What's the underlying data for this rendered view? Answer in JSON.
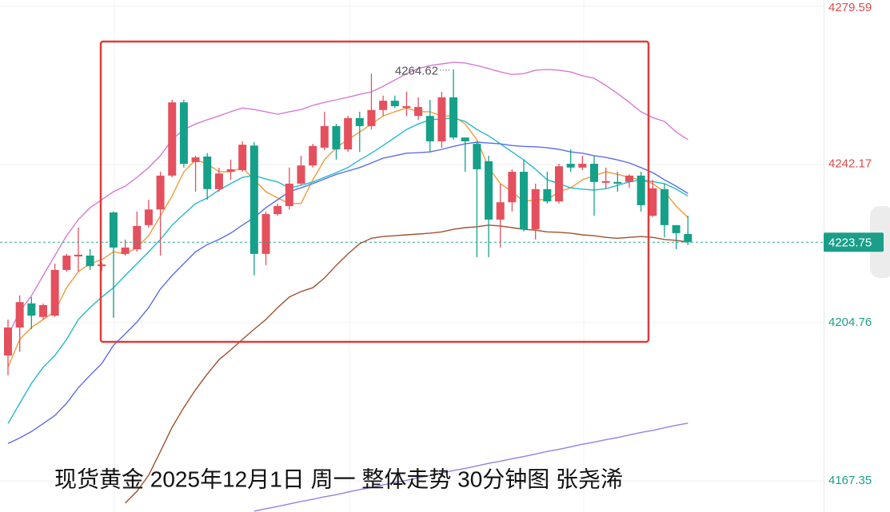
{
  "chart_data": {
    "type": "candlestick",
    "title": "现货黄金 2025年12月1日 周一 整体走势 30分钟图 张尧浠",
    "ylim": [
      4160,
      4281
    ],
    "yticks": [
      4279.59,
      4242.17,
      4204.76,
      4167.35
    ],
    "grid": true,
    "up_color": "#e5505e",
    "down_color": "#15a08a",
    "open": [
      4197.0,
      4203.6,
      4209.3,
      4206.1,
      4206.4,
      4217.2,
      4220.4,
      4220.6,
      4218.1,
      4230.8,
      4221.0,
      4222.1,
      4227.8,
      4231.5,
      4239.5,
      4256.8,
      4242.7,
      4244.0,
      4236.3,
      4240.4,
      4240.8,
      4246.6,
      4221.0,
      4230.4,
      4232.3,
      4237.6,
      4241.9,
      4246.1,
      4251.2,
      4245.7,
      4253.1,
      4251.2,
      4255.0,
      4257.2,
      4255.5,
      4253.6,
      4253.6,
      4247.6,
      4258.0,
      4248.5,
      4247.0,
      4242.9,
      4229.1,
      4233.2,
      4240.4,
      4226.8,
      4236.3,
      4233.4,
      4242.3,
      4241.4,
      4242.3,
      4237.8,
      4238.0,
      4238.0,
      4239.5,
      4230.0,
      4236.3,
      4227.8,
      4225.7
    ],
    "high": [
      4205.5,
      4211.2,
      4210.8,
      4209.3,
      4218.7,
      4221.0,
      4227.2,
      4222.1,
      4219.0,
      4231.0,
      4224.4,
      4231.0,
      4233.8,
      4240.4,
      4257.4,
      4257.4,
      4244.2,
      4244.8,
      4241.4,
      4243.3,
      4247.6,
      4247.4,
      4231.0,
      4232.9,
      4241.4,
      4244.2,
      4247.0,
      4254.6,
      4251.7,
      4253.6,
      4254.6,
      4263.6,
      4258.4,
      4258.4,
      4259.3,
      4258.0,
      4257.4,
      4259.3,
      4264.62,
      4248.5,
      4247.6,
      4244.2,
      4237.6,
      4241.0,
      4243.3,
      4237.6,
      4240.4,
      4242.3,
      4245.7,
      4244.2,
      4244.2,
      4241.4,
      4240.4,
      4239.8,
      4240.4,
      4238.5,
      4237.6,
      4227.8,
      4230.0
    ],
    "low": [
      4192.3,
      4197.9,
      4203.2,
      4205.5,
      4206.1,
      4216.8,
      4216.8,
      4217.2,
      4217.0,
      4205.9,
      4220.6,
      4221.5,
      4227.2,
      4220.6,
      4239.1,
      4241.4,
      4235.7,
      4233.8,
      4235.7,
      4238.5,
      4240.4,
      4215.9,
      4218.3,
      4230.0,
      4231.5,
      4237.2,
      4241.4,
      4245.5,
      4243.3,
      4245.1,
      4245.1,
      4250.4,
      4253.6,
      4255.5,
      4253.6,
      4252.7,
      4245.1,
      4246.1,
      4248.0,
      4240.4,
      4220.2,
      4220.2,
      4222.5,
      4231.0,
      4226.3,
      4224.4,
      4232.9,
      4232.9,
      4240.4,
      4240.8,
      4230.0,
      4236.3,
      4235.7,
      4236.6,
      4231.0,
      4229.7,
      4224.9,
      4222.1,
      4223.1
    ],
    "close": [
      4203.6,
      4209.6,
      4206.4,
      4208.9,
      4217.2,
      4220.6,
      4220.8,
      4218.1,
      4218.5,
      4222.5,
      4222.5,
      4227.6,
      4231.5,
      4239.5,
      4256.8,
      4242.3,
      4243.8,
      4236.3,
      4240.0,
      4241.0,
      4246.8,
      4221.0,
      4230.4,
      4232.3,
      4237.6,
      4241.9,
      4246.5,
      4251.2,
      4245.7,
      4253.1,
      4251.2,
      4255.0,
      4257.2,
      4255.9,
      4255.9,
      4255.7,
      4247.6,
      4258.0,
      4248.5,
      4247.6,
      4241.0,
      4229.1,
      4233.2,
      4240.4,
      4226.8,
      4236.3,
      4233.4,
      4241.7,
      4241.4,
      4242.3,
      4238.0,
      4238.2,
      4237.6,
      4239.5,
      4232.5,
      4236.5,
      4227.8,
      4225.9,
      4223.75
    ],
    "lines": [
      {
        "color": "#f29a38",
        "values": [
          4194.2,
          4200.8,
          4203.6,
          4205.5,
          4207.4,
          4213.0,
          4216.8,
          4218.7,
          4219.6,
          4221.5,
          4221.0,
          4222.5,
          4225.3,
          4230.0,
          4234.7,
          4240.4,
          4243.2,
          4242.3,
          4240.4,
          4240.4,
          4241.4,
          4238.5,
          4235.7,
          4234.2,
          4232.9,
          4232.9,
          4238.5,
          4243.2,
          4246.1,
          4248.0,
          4249.8,
          4251.7,
          4253.6,
          4254.6,
          4255.5,
          4254.6,
          4254.6,
          4253.6,
          4253.6,
          4251.7,
          4248.0,
          4241.4,
          4237.6,
          4235.7,
          4233.4,
          4233.8,
          4233.8,
          4235.7,
          4236.6,
          4238.5,
          4239.5,
          4240.4,
          4239.8,
          4239.1,
          4238.5,
          4237.6,
          4235.7,
          4232.3,
          4229.6
        ]
      },
      {
        "color": "#25b8c8",
        "values": [
          4180.9,
          4185.7,
          4190.4,
          4194.2,
          4197.0,
          4200.8,
          4205.5,
          4208.3,
          4210.8,
          4213.0,
          4215.9,
          4218.7,
          4221.5,
          4224.4,
          4227.8,
          4230.4,
          4232.9,
          4234.2,
          4236.1,
          4237.6,
          4239.1,
          4239.5,
          4238.7,
          4238.0,
          4236.6,
          4237.2,
          4238.0,
          4239.1,
          4240.2,
          4241.4,
          4243.2,
          4244.8,
          4246.6,
          4248.5,
          4250.4,
          4251.7,
          4252.7,
          4252.9,
          4253.1,
          4252.3,
          4250.4,
          4248.9,
          4247.0,
          4245.1,
          4243.2,
          4241.0,
          4238.5,
          4237.6,
          4236.6,
          4236.3,
          4236.1,
          4236.4,
          4237.2,
          4238.0,
          4238.5,
          4238.1,
          4237.6,
          4236.3,
          4234.7
        ]
      },
      {
        "color": "#5b6ee8",
        "values": [
          4176.2,
          4177.5,
          4179.0,
          4180.9,
          4182.8,
          4185.7,
          4189.4,
          4192.3,
          4195.1,
          4199.4,
          4202.1,
          4204.9,
          4208.3,
          4212.7,
          4215.9,
          4218.7,
          4221.5,
          4223.2,
          4224.4,
          4225.9,
          4227.8,
          4229.6,
          4231.9,
          4233.8,
          4235.7,
          4236.6,
          4237.6,
          4238.7,
          4239.8,
          4240.6,
          4241.4,
          4242.5,
          4243.6,
          4244.2,
          4244.8,
          4244.9,
          4245.1,
          4245.7,
          4246.4,
          4247.0,
          4247.4,
          4247.2,
          4247.0,
          4246.6,
          4246.4,
          4246.3,
          4246.1,
          4245.7,
          4245.1,
          4244.8,
          4244.2,
          4243.8,
          4243.2,
          4242.5,
          4241.4,
          4240.2,
          4238.5,
          4237.0,
          4235.3
        ]
      },
      {
        "color": "#a0522d",
        "values": [
          null,
          null,
          null,
          null,
          null,
          null,
          null,
          null,
          null,
          null,
          4162.1,
          4164.9,
          4168.7,
          4174.3,
          4180.0,
          4184.7,
          4188.9,
          4192.6,
          4196.0,
          4198.3,
          4200.8,
          4203.2,
          4205.5,
          4208.3,
          4210.8,
          4212.1,
          4213.0,
          4215.3,
          4218.3,
          4221.0,
          4223.4,
          4224.7,
          4225.1,
          4225.3,
          4225.5,
          4225.7,
          4225.9,
          4226.2,
          4226.8,
          4227.2,
          4227.4,
          4227.8,
          4227.6,
          4227.2,
          4226.8,
          4226.6,
          4226.2,
          4226.1,
          4225.9,
          4225.5,
          4225.3,
          4224.9,
          4224.7,
          4224.9,
          4225.1,
          4224.9,
          4224.4,
          4224.2,
          4223.8
        ]
      },
      {
        "color": "#d57bd5",
        "values": [
          4201.7,
          4207.4,
          4211.1,
          4215.9,
          4220.6,
          4225.3,
          4229.1,
          4231.9,
          4233.8,
          4235.7,
          4237.0,
          4239.1,
          4241.4,
          4244.2,
          4248.0,
          4250.4,
          4251.7,
          4252.7,
          4253.6,
          4254.6,
          4255.5,
          4255.1,
          4254.6,
          4254.0,
          4254.6,
          4255.1,
          4256.1,
          4256.8,
          4257.4,
          4258.0,
          4258.7,
          4259.3,
          4260.6,
          4262.1,
          4263.6,
          4264.8,
          4265.5,
          4265.9,
          4266.3,
          4266.1,
          4265.5,
          4264.8,
          4264.0,
          4263.4,
          4263.6,
          4264.4,
          4264.6,
          4264.4,
          4264.0,
          4263.1,
          4262.5,
          4260.8,
          4258.9,
          4256.8,
          4254.6,
          4253.2,
          4252.3,
          4249.8,
          4248.0
        ]
      },
      {
        "color": "#9a7ee0",
        "values": [
          null,
          null,
          null,
          null,
          null,
          null,
          null,
          null,
          null,
          null,
          null,
          null,
          null,
          null,
          null,
          null,
          null,
          null,
          null,
          null,
          null,
          4160.2,
          4160.8,
          4161.3,
          4161.9,
          4162.5,
          4163.0,
          4163.6,
          4164.1,
          4164.7,
          4165.3,
          4165.8,
          4166.4,
          4167.0,
          4167.5,
          4168.1,
          4168.6,
          4169.2,
          4169.8,
          4170.3,
          4170.9,
          4171.5,
          4172.0,
          4172.6,
          4173.1,
          4173.7,
          4174.3,
          4174.8,
          4175.4,
          4176.0,
          4176.5,
          4177.1,
          4177.6,
          4178.2,
          4178.8,
          4179.3,
          4179.9,
          4180.5,
          4181.0
        ]
      }
    ]
  }
}
